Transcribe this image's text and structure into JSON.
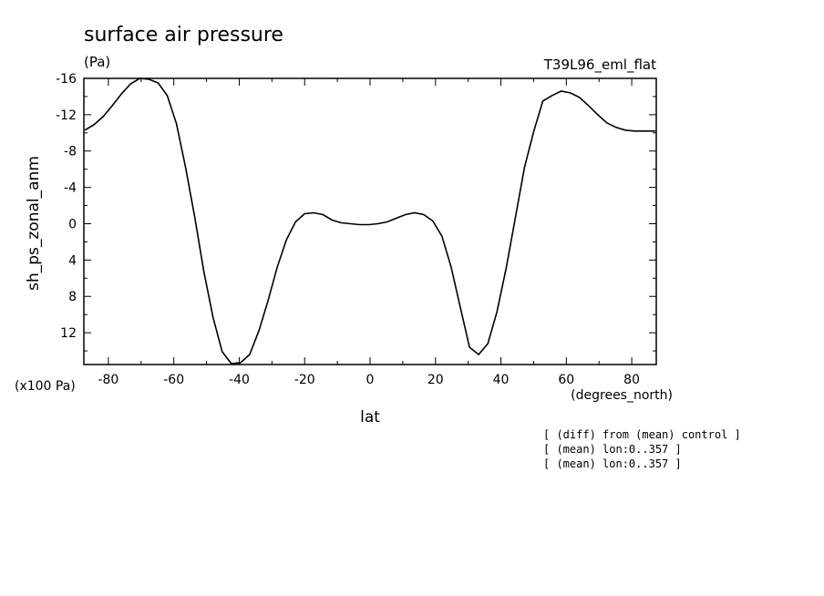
{
  "chart_data": {
    "type": "line",
    "title": "surface air pressure",
    "units": "(Pa)",
    "run_label": "T39L96_eml_flat",
    "xlabel": "lat",
    "xunits": "(degrees_north)",
    "ylabel": "sh_ps_zonal_anm",
    "yscale_note": "(x100 Pa)",
    "notes": [
      "[ (diff) from (mean) control ]",
      "[ (mean) lon:0..357 ]",
      "[ (mean) lon:0..357 ]"
    ],
    "xlim": [
      -87.5,
      87.5
    ],
    "ylim": [
      -16,
      15.5
    ],
    "y_inverted": true,
    "xticks": [
      -80,
      -60,
      -40,
      -20,
      0,
      20,
      40,
      60,
      80
    ],
    "xtick_labels": [
      "-80",
      "-60",
      "-40",
      "-20",
      "0",
      "20",
      "40",
      "60",
      "80"
    ],
    "yticks": [
      -16,
      -12,
      -8,
      -4,
      0,
      4,
      8,
      12
    ],
    "ytick_labels": [
      "-16",
      "-12",
      "-8",
      "-4",
      "0",
      "4",
      "8",
      "12"
    ],
    "grid": false,
    "series": [
      {
        "x": [
          -87.2,
          -84.4,
          -81.6,
          -78.8,
          -76.0,
          -73.2,
          -70.4,
          -67.6,
          -64.8,
          -62.0,
          -59.2,
          -56.4,
          -53.6,
          -50.8,
          -48.0,
          -45.2,
          -42.4,
          -39.6,
          -36.8,
          -34.0,
          -31.2,
          -28.4,
          -25.6,
          -22.8,
          -20.0,
          -17.2,
          -14.4,
          -11.6,
          -8.8,
          -6.0,
          -3.2,
          -0.4,
          2.4,
          5.2,
          8.0,
          10.8,
          13.6,
          16.4,
          19.2,
          22.0,
          24.8,
          27.6,
          30.4,
          33.2,
          36.0,
          38.8,
          41.6,
          44.4,
          47.2,
          50.0,
          52.8,
          55.6,
          58.4,
          61.2,
          64.0,
          66.8,
          69.6,
          72.4,
          75.2,
          78.0,
          80.8,
          83.6,
          86.4,
          87.2
        ],
        "y": [
          -10.3,
          -10.9,
          -11.8,
          -13.0,
          -14.3,
          -15.4,
          -16.0,
          -15.9,
          -15.5,
          -14.1,
          -11.0,
          -6.2,
          -0.7,
          5.3,
          10.3,
          14.1,
          15.4,
          15.3,
          14.4,
          11.8,
          8.5,
          4.8,
          1.8,
          -0.2,
          -1.1,
          -1.2,
          -1.0,
          -0.4,
          -0.1,
          0.0,
          0.1,
          0.1,
          0.0,
          -0.2,
          -0.6,
          -1.0,
          -1.2,
          -1.0,
          -0.3,
          1.4,
          4.8,
          9.2,
          13.6,
          14.4,
          13.2,
          9.7,
          4.9,
          -0.6,
          -6.2,
          -10.1,
          -13.5,
          -14.1,
          -14.6,
          -14.4,
          -13.9,
          -13.0,
          -12.0,
          -11.1,
          -10.6,
          -10.3,
          -10.2,
          -10.2,
          -10.2,
          -10.2
        ]
      }
    ]
  }
}
